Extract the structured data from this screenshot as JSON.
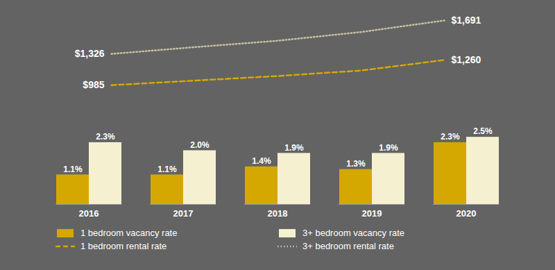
{
  "chart_data": [
    {
      "type": "line",
      "categories": [
        "2016",
        "2017",
        "2018",
        "2019",
        "2020"
      ],
      "series": [
        {
          "name": "1 bedroom rental rate",
          "color": "#D4A800",
          "line_style": "dashed",
          "values": [
            985,
            1035,
            1085,
            1145,
            1260
          ],
          "value_labels": [
            "$985",
            null,
            null,
            null,
            "$1,260"
          ]
        },
        {
          "name": "3+ bedroom rental rate",
          "color": "#C8C0A0",
          "line_style": "dotted",
          "values": [
            1326,
            1400,
            1470,
            1565,
            1691
          ],
          "value_labels": [
            "$1,326",
            null,
            null,
            null,
            "$1,691"
          ]
        }
      ],
      "ylim": [
        820,
        1820
      ],
      "tick_labels": false,
      "data_labels": true,
      "grid": false,
      "legend": "bottom"
    },
    {
      "type": "bar",
      "categories": [
        "2016",
        "2017",
        "2018",
        "2019",
        "2020"
      ],
      "series": [
        {
          "name": "1 bedroom vacancy rate",
          "color": "#D4A800",
          "values": [
            1.1,
            1.1,
            1.4,
            1.3,
            2.3
          ],
          "value_labels": [
            "1.1%",
            "1.1%",
            "1.4%",
            "1.3%",
            "2.3%"
          ]
        },
        {
          "name": "3+ bedroom vacancy rate",
          "color": "#F5F0D0",
          "values": [
            2.3,
            2.0,
            1.9,
            1.9,
            2.5
          ],
          "value_labels": [
            "2.3%",
            "2.0%",
            "1.9%",
            "1.9%",
            "2.5%"
          ]
        }
      ],
      "ylim": [
        0,
        3.2
      ],
      "tick_labels": "x",
      "data_labels": true,
      "grid": false,
      "legend": "bottom"
    }
  ]
}
